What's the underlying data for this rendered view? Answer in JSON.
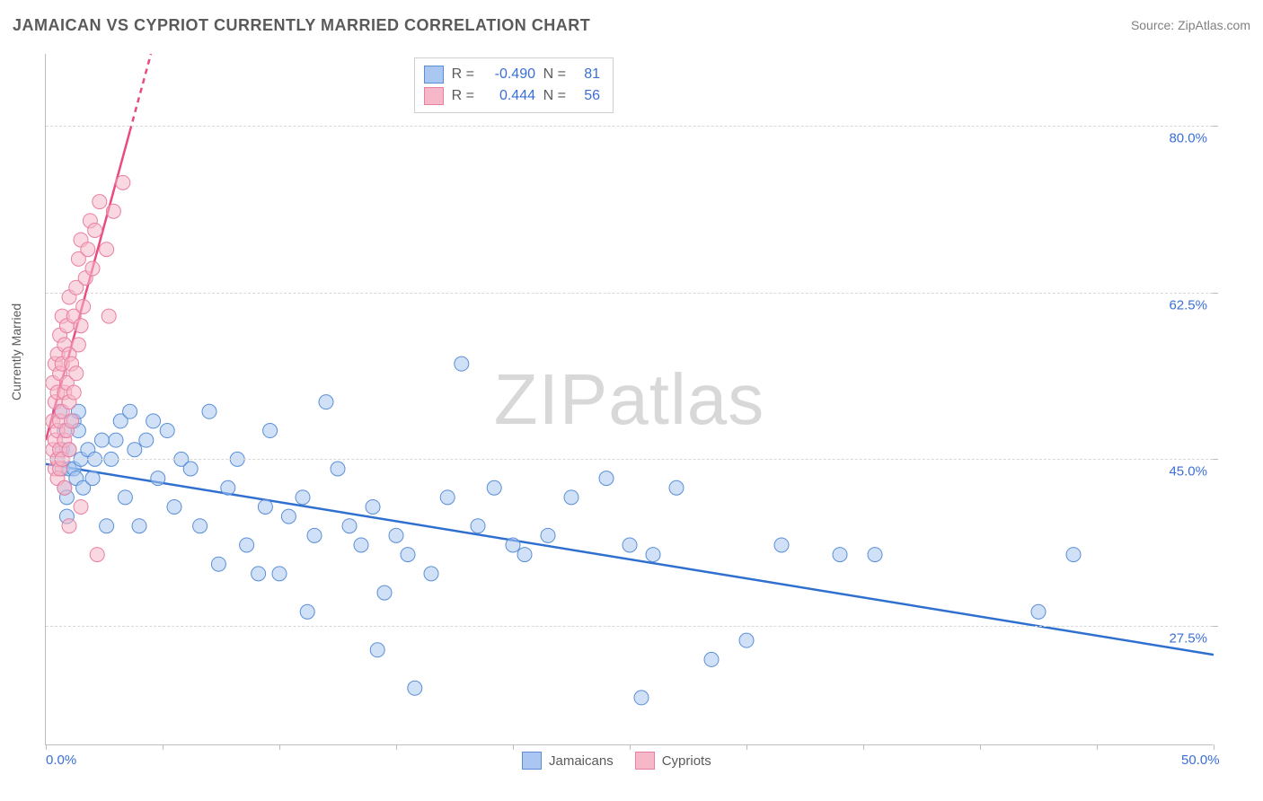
{
  "title": "JAMAICAN VS CYPRIOT CURRENTLY MARRIED CORRELATION CHART",
  "source_label": "Source: ZipAtlas.com",
  "watermark": "ZIPatlas",
  "ylabel": "Currently Married",
  "chart": {
    "type": "scatter",
    "xlim": [
      0,
      50
    ],
    "ylim": [
      15,
      87.5
    ],
    "x_ticks": [
      0,
      5,
      10,
      15,
      20,
      25,
      30,
      35,
      40,
      45,
      50
    ],
    "x_tick_labels": {
      "0": "0.0%",
      "50": "50.0%"
    },
    "y_gridlines": [
      27.5,
      45.0,
      62.5,
      80.0
    ],
    "y_tick_labels": {
      "27.5": "27.5%",
      "45.0": "45.0%",
      "62.5": "62.5%",
      "80.0": "80.0%"
    },
    "background_color": "#ffffff",
    "grid_color": "#d8d8d8",
    "axis_color": "#bdbdbd",
    "title_color": "#5a5a5a",
    "tick_label_color": "#3b6fd6",
    "marker_radius": 8,
    "marker_opacity": 0.55,
    "series": [
      {
        "name": "Jamaicans",
        "color_fill": "#a9c7f0",
        "color_stroke": "#5a8fd6",
        "trend": {
          "x1": 0,
          "y1": 44.5,
          "x2": 50,
          "y2": 24.5,
          "color": "#2f6fd0",
          "width": 2.5
        },
        "R": "-0.490",
        "N": "81",
        "points": [
          [
            0.5,
            45
          ],
          [
            0.6,
            50
          ],
          [
            0.7,
            44
          ],
          [
            0.7,
            46
          ],
          [
            0.8,
            48
          ],
          [
            0.8,
            42
          ],
          [
            0.9,
            41
          ],
          [
            0.9,
            39
          ],
          [
            1.0,
            44
          ],
          [
            1.0,
            46
          ],
          [
            1.2,
            44
          ],
          [
            1.2,
            49
          ],
          [
            1.3,
            43
          ],
          [
            1.4,
            48
          ],
          [
            1.4,
            50
          ],
          [
            1.5,
            45
          ],
          [
            1.6,
            42
          ],
          [
            1.8,
            46
          ],
          [
            2.0,
            43
          ],
          [
            2.1,
            45
          ],
          [
            2.4,
            47
          ],
          [
            2.6,
            38
          ],
          [
            2.8,
            45
          ],
          [
            3.0,
            47
          ],
          [
            3.2,
            49
          ],
          [
            3.4,
            41
          ],
          [
            3.6,
            50
          ],
          [
            3.8,
            46
          ],
          [
            4.0,
            38
          ],
          [
            4.3,
            47
          ],
          [
            4.6,
            49
          ],
          [
            4.8,
            43
          ],
          [
            5.2,
            48
          ],
          [
            5.5,
            40
          ],
          [
            5.8,
            45
          ],
          [
            6.2,
            44
          ],
          [
            6.6,
            38
          ],
          [
            7.0,
            50
          ],
          [
            7.4,
            34
          ],
          [
            7.8,
            42
          ],
          [
            8.2,
            45
          ],
          [
            8.6,
            36
          ],
          [
            9.1,
            33
          ],
          [
            9.4,
            40
          ],
          [
            9.6,
            48
          ],
          [
            10.0,
            33
          ],
          [
            10.4,
            39
          ],
          [
            11.0,
            41
          ],
          [
            11.2,
            29
          ],
          [
            11.5,
            37
          ],
          [
            12.0,
            51
          ],
          [
            12.5,
            44
          ],
          [
            13.0,
            38
          ],
          [
            13.5,
            36
          ],
          [
            14.0,
            40
          ],
          [
            14.2,
            25
          ],
          [
            14.5,
            31
          ],
          [
            15.0,
            37
          ],
          [
            15.5,
            35
          ],
          [
            15.8,
            21
          ],
          [
            16.5,
            33
          ],
          [
            17.2,
            41
          ],
          [
            17.8,
            55
          ],
          [
            18.5,
            38
          ],
          [
            19.2,
            42
          ],
          [
            20.0,
            36
          ],
          [
            20.5,
            35
          ],
          [
            21.5,
            37
          ],
          [
            22.5,
            41
          ],
          [
            24.0,
            43
          ],
          [
            25.0,
            36
          ],
          [
            25.5,
            20
          ],
          [
            26.0,
            35
          ],
          [
            27.0,
            42
          ],
          [
            28.5,
            24
          ],
          [
            30.0,
            26
          ],
          [
            31.5,
            36
          ],
          [
            34.0,
            35
          ],
          [
            35.5,
            35
          ],
          [
            42.5,
            29
          ],
          [
            44.0,
            35
          ]
        ]
      },
      {
        "name": "Cypriots",
        "color_fill": "#f6b8c8",
        "color_stroke": "#e97fa0",
        "trend": {
          "x1": 0,
          "y1": 47,
          "x2": 4.5,
          "y2": 87.5,
          "color": "#e94b80",
          "width": 2.5,
          "dash_after_x": 3.6
        },
        "R": "0.444",
        "N": "56",
        "points": [
          [
            0.3,
            46
          ],
          [
            0.3,
            49
          ],
          [
            0.3,
            53
          ],
          [
            0.4,
            44
          ],
          [
            0.4,
            47
          ],
          [
            0.4,
            51
          ],
          [
            0.4,
            55
          ],
          [
            0.5,
            43
          ],
          [
            0.5,
            45
          ],
          [
            0.5,
            48
          ],
          [
            0.5,
            52
          ],
          [
            0.5,
            56
          ],
          [
            0.6,
            44
          ],
          [
            0.6,
            46
          ],
          [
            0.6,
            49
          ],
          [
            0.6,
            54
          ],
          [
            0.6,
            58
          ],
          [
            0.7,
            45
          ],
          [
            0.7,
            50
          ],
          [
            0.7,
            55
          ],
          [
            0.7,
            60
          ],
          [
            0.8,
            42
          ],
          [
            0.8,
            47
          ],
          [
            0.8,
            52
          ],
          [
            0.8,
            57
          ],
          [
            0.9,
            48
          ],
          [
            0.9,
            53
          ],
          [
            0.9,
            59
          ],
          [
            1.0,
            46
          ],
          [
            1.0,
            51
          ],
          [
            1.0,
            56
          ],
          [
            1.0,
            62
          ],
          [
            1.1,
            49
          ],
          [
            1.1,
            55
          ],
          [
            1.2,
            52
          ],
          [
            1.2,
            60
          ],
          [
            1.3,
            54
          ],
          [
            1.3,
            63
          ],
          [
            1.4,
            57
          ],
          [
            1.4,
            66
          ],
          [
            1.5,
            59
          ],
          [
            1.5,
            68
          ],
          [
            1.6,
            61
          ],
          [
            1.7,
            64
          ],
          [
            1.8,
            67
          ],
          [
            1.9,
            70
          ],
          [
            2.0,
            65
          ],
          [
            2.1,
            69
          ],
          [
            2.3,
            72
          ],
          [
            2.6,
            67
          ],
          [
            2.9,
            71
          ],
          [
            3.3,
            74
          ],
          [
            1.0,
            38
          ],
          [
            1.5,
            40
          ],
          [
            2.2,
            35
          ],
          [
            2.7,
            60
          ]
        ]
      }
    ]
  },
  "legend": {
    "items": [
      {
        "label": "Jamaicans",
        "fill": "#a9c7f0",
        "stroke": "#5a8fd6"
      },
      {
        "label": "Cypriots",
        "fill": "#f6b8c8",
        "stroke": "#e97fa0"
      }
    ]
  }
}
